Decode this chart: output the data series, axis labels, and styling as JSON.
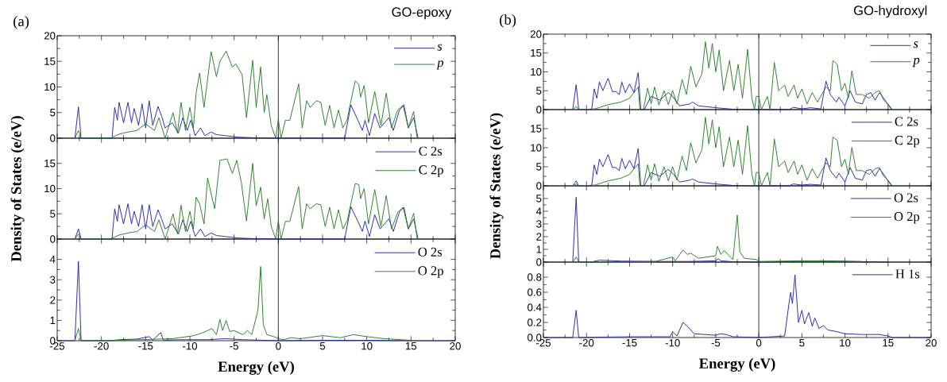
{
  "chart_data": [
    {
      "type": "line",
      "title": "GO-epoxy",
      "annotations": [
        "(a)"
      ],
      "xlim": [
        -25,
        20
      ],
      "xticks": [
        -25,
        -20,
        -15,
        -10,
        -5,
        0,
        5,
        10,
        15,
        20
      ],
      "ylim": [
        0,
        20
      ],
      "yticks": [
        0,
        5,
        10,
        15,
        20
      ],
      "tick_labels": "y",
      "legend": "top right",
      "ref_lines": [
        {
          "axis": "x",
          "value": 0
        }
      ],
      "series": [
        {
          "name": "*s*",
          "color": "#2020b0",
          "x": [
            -23,
            -22.6,
            -22.3,
            -19,
            -18.8,
            -18.5,
            -18.2,
            -18.0,
            -17.5,
            -17.0,
            -16.6,
            -16.3,
            -15.8,
            -15.4,
            -15.0,
            -14.6,
            -14.2,
            -13.6,
            -13.2,
            -12.8,
            -12.0,
            -11.3,
            -10.8,
            -10.3,
            -9.9,
            -9.4,
            -8.8,
            -8.3,
            -7.6,
            -7.0,
            -6.0,
            -4.5,
            -3.0,
            0,
            7.5,
            8.2,
            9.0,
            9.5,
            9.8,
            10.3,
            10.9,
            11.5,
            12.5,
            13.0,
            13.7,
            14.2,
            14.7,
            15.3,
            15.8
          ],
          "values": [
            0,
            6.1,
            0,
            0,
            0,
            6,
            3.5,
            7,
            3,
            7,
            3,
            5.8,
            2.5,
            6.7,
            2,
            7.3,
            2.5,
            6.2,
            4.3,
            2,
            3,
            1,
            4,
            1.5,
            3.5,
            0.5,
            2,
            0.5,
            1.2,
            0.7,
            0.5,
            0.2,
            0.1,
            0,
            0,
            6.5,
            3.5,
            1.5,
            3.5,
            0.5,
            4.8,
            2,
            4,
            1.5,
            5.5,
            6.5,
            2,
            4,
            0
          ]
        },
        {
          "name": "*p*",
          "color": "#1f7f1f",
          "x": [
            -23,
            -22.6,
            -22.3,
            -19,
            -18,
            -17,
            -16,
            -15,
            -14,
            -13.5,
            -12.8,
            -11.9,
            -11.4,
            -11.0,
            -10.5,
            -10.0,
            -9.6,
            -9.3,
            -8.9,
            -8.4,
            -7.6,
            -7.0,
            -6.6,
            -5.9,
            -5.2,
            -4.8,
            -4.1,
            -3.6,
            -2.9,
            -2.5,
            -2.0,
            -1.6,
            -1.3,
            -0.8,
            -0.3,
            0,
            0.3,
            0.8,
            1.3,
            2.3,
            2.7,
            3.2,
            3.6,
            4.3,
            4.8,
            5.3,
            5.8,
            6.3,
            6.8,
            7.3,
            7.8,
            8.1,
            8.7,
            9.1,
            9.3,
            9.7,
            10.2,
            10.9,
            11.6,
            12.2,
            12.8,
            13.5,
            14.1,
            14.7,
            15.3,
            15.7
          ],
          "values": [
            0,
            1.5,
            0,
            0,
            0.8,
            1.2,
            1.5,
            2.8,
            1.5,
            4,
            0,
            5,
            1,
            7,
            1.5,
            6,
            2,
            8.8,
            12.7,
            6,
            16.9,
            12,
            15,
            17,
            13.9,
            14.5,
            12.4,
            4,
            15.2,
            6,
            13.9,
            5,
            8.5,
            2.5,
            0,
            3.7,
            0,
            3.5,
            3.5,
            10.6,
            2,
            7.3,
            6,
            7.3,
            7,
            2.5,
            6.4,
            2,
            5.5,
            2,
            3.7,
            6.4,
            11.2,
            10.5,
            8,
            10.3,
            3,
            9.1,
            2.5,
            8.8,
            2,
            5.5,
            6.4,
            2,
            5.2,
            0
          ]
        }
      ]
    },
    {
      "type": "line",
      "ylabel": "Density of States (e/eV)",
      "xlim": [
        -25,
        20
      ],
      "xticks": [
        -25,
        -20,
        -15,
        -10,
        -5,
        0,
        5,
        10,
        15,
        20
      ],
      "ylim": [
        0,
        20
      ],
      "yticks": [
        0,
        5,
        10,
        15
      ],
      "tick_labels": "y",
      "legend": "top right",
      "ref_lines": [
        {
          "axis": "x",
          "value": 0
        }
      ],
      "series": [
        {
          "name": "C 2s",
          "color": "#2020b0",
          "x": [
            -23,
            -22.6,
            -22.3,
            -19,
            -18.8,
            -18.5,
            -18.2,
            -18.0,
            -17.5,
            -17.0,
            -16.6,
            -16.3,
            -15.8,
            -15.4,
            -15.0,
            -14.6,
            -14.2,
            -13.6,
            -13.2,
            -12.8,
            -12.0,
            -11.3,
            -10.8,
            -10.3,
            -9.9,
            -9.4,
            -8.8,
            -8.3,
            -7.6,
            -7.0,
            -6.0,
            -4.5,
            -3.0,
            0,
            7.5,
            8.2,
            9.0,
            9.5,
            9.8,
            10.3,
            10.9,
            11.5,
            12.5,
            13.0,
            13.7,
            14.2,
            14.7,
            15.3,
            15.8
          ],
          "values": [
            0,
            2,
            0,
            0,
            0,
            6,
            3.5,
            6.8,
            3,
            7,
            3,
            5.5,
            2.5,
            6.8,
            2,
            6.8,
            2.5,
            5.8,
            4,
            2,
            3,
            1,
            3.8,
            1.5,
            3.5,
            0.5,
            2,
            0.5,
            1.2,
            0.7,
            0.5,
            0.2,
            0.1,
            0,
            0,
            6.4,
            3.5,
            1.5,
            3.6,
            0.5,
            4.8,
            2,
            4,
            1.5,
            5.4,
            6.3,
            2,
            4,
            0
          ]
        },
        {
          "name": "C 2p",
          "color": "#1f7f1f",
          "x": [
            -23,
            -22.6,
            -22.3,
            -19,
            -18,
            -17,
            -16,
            -15,
            -14,
            -13.5,
            -12.8,
            -11.9,
            -11.4,
            -11.0,
            -10.5,
            -10.0,
            -9.6,
            -9.3,
            -8.9,
            -8.4,
            -8.0,
            -7.2,
            -6.6,
            -5.8,
            -5.2,
            -4.7,
            -4.2,
            -3.6,
            -2.9,
            -2.5,
            -2.0,
            -1.6,
            -1.2,
            -0.8,
            -0.3,
            0,
            0.3,
            0.8,
            1.3,
            2.3,
            2.7,
            3.2,
            3.6,
            4.3,
            4.8,
            5.3,
            5.8,
            6.3,
            6.8,
            7.3,
            7.8,
            8.1,
            8.7,
            9.1,
            9.3,
            9.7,
            10.2,
            10.9,
            11.6,
            12.2,
            12.8,
            13.5,
            14.1,
            14.7,
            15.3,
            15.7
          ],
          "values": [
            0,
            1,
            0,
            0,
            0.8,
            1.2,
            1.5,
            2.8,
            1.5,
            3.8,
            0,
            5,
            1,
            6.7,
            1.5,
            5.5,
            2,
            8.3,
            7,
            3,
            12.1,
            6,
            15.6,
            15.9,
            13,
            15.6,
            11.4,
            3.6,
            15,
            6.6,
            10.3,
            4,
            8,
            2.5,
            0,
            3.6,
            0,
            3.5,
            3.5,
            10.4,
            2,
            7,
            6,
            7,
            6.8,
            2.5,
            6.3,
            2,
            5.8,
            2,
            3.7,
            6.2,
            11,
            10.8,
            8,
            10,
            3,
            9.8,
            2.5,
            8.6,
            2,
            5.3,
            6.3,
            2,
            5.1,
            0
          ]
        }
      ]
    },
    {
      "type": "line",
      "xlabel": "Energy (eV)",
      "xlim": [
        -25,
        20
      ],
      "xticks": [
        -25,
        -20,
        -15,
        -10,
        -5,
        0,
        5,
        10,
        15,
        20
      ],
      "ylim": [
        0,
        5
      ],
      "yticks": [
        0,
        1,
        2,
        3,
        4
      ],
      "legend": "top right",
      "ref_lines": [
        {
          "axis": "x",
          "value": 0
        }
      ],
      "series": [
        {
          "name": "O 2s",
          "color": "#2020b0",
          "x": [
            -25,
            -23,
            -22.6,
            -22.3,
            -19,
            -18,
            -16,
            -14.6,
            -14.2,
            -13.3,
            -13.0,
            -11,
            -8,
            -6,
            -4,
            0,
            5,
            10,
            15,
            20
          ],
          "values": [
            0,
            0,
            3.9,
            0,
            0,
            0.05,
            0.08,
            0.2,
            0.03,
            0.4,
            0.03,
            0.05,
            0.05,
            0.1,
            0.05,
            0,
            0.02,
            0.02,
            0,
            0
          ]
        },
        {
          "name": "O 2p",
          "color": "#1f7f1f",
          "x": [
            -23,
            -22.6,
            -22.3,
            -19,
            -12,
            -9.5,
            -8.5,
            -8.0,
            -7.5,
            -7.0,
            -6.6,
            -6.3,
            -5.9,
            -5.5,
            -5.0,
            -4.5,
            -4.0,
            -3.5,
            -3.0,
            -2.3,
            -2.0,
            -1.7,
            -1.3,
            -0.5,
            0,
            0.6,
            1.4,
            2.5,
            5.0,
            6.0,
            7.0,
            8.5,
            10.0,
            12.0,
            15.0
          ],
          "values": [
            0,
            0.6,
            0,
            0,
            0.1,
            0.25,
            0.4,
            0.5,
            0.6,
            0.3,
            1.05,
            0.5,
            1.0,
            0.45,
            0.5,
            0.4,
            0.3,
            0.5,
            0.3,
            1.5,
            3.65,
            0.8,
            0.3,
            0.2,
            0.1,
            0.05,
            0.15,
            0.1,
            0.25,
            0.2,
            0.15,
            0.3,
            0.2,
            0.1,
            0.02
          ]
        }
      ]
    },
    {
      "type": "line",
      "title": "GO-hydroxyl",
      "annotations": [
        "(b)"
      ],
      "xlim": [
        -25,
        20
      ],
      "xticks": [
        -25,
        -20,
        -15,
        -10,
        -5,
        0,
        5,
        10,
        15,
        20
      ],
      "ylim": [
        0,
        20
      ],
      "yticks": [
        0,
        5,
        10,
        15,
        20
      ],
      "tick_labels": "y",
      "legend": "top right",
      "ref_lines": [
        {
          "axis": "x",
          "value": 0
        }
      ],
      "series": [
        {
          "name": "*s*",
          "color": "#2020b0",
          "x": [
            -21.6,
            -21.2,
            -20.9,
            -19.4,
            -19.1,
            -18.8,
            -18.5,
            -18.1,
            -17.5,
            -17.0,
            -16.6,
            -16.2,
            -15.9,
            -15.5,
            -15.0,
            -14.5,
            -14.0,
            -13.7,
            -13.3,
            -12.5,
            -11.5,
            -10.5,
            -10.0,
            -9.2,
            -8.0,
            -7.7,
            -7.0,
            -5.0,
            -3.0,
            0,
            3.5,
            4.0,
            5.0,
            6.0,
            7.2,
            7.8,
            8.3,
            9.0,
            9.3,
            10.0,
            10.6,
            11.2,
            12.0,
            12.5,
            13.0,
            13.5,
            14.0,
            14.5,
            15.3,
            15.5
          ],
          "values": [
            0,
            6.6,
            0,
            0,
            5.5,
            3,
            7.3,
            5,
            8.3,
            4.8,
            4.8,
            4,
            7.3,
            4.5,
            6.8,
            4.5,
            9.8,
            0,
            0,
            3.5,
            2.5,
            4.5,
            3.5,
            1,
            1.5,
            2,
            1,
            0.5,
            0.1,
            0,
            0,
            0.6,
            0.2,
            0.5,
            0.2,
            7.5,
            4,
            2,
            3.3,
            1,
            5,
            2,
            1.5,
            4,
            4.5,
            2.5,
            4.5,
            3,
            0.3,
            0
          ]
        },
        {
          "name": "*p*",
          "color": "#1f7f1f",
          "x": [
            -21.6,
            -21.2,
            -20.9,
            -19,
            -17.5,
            -16,
            -15,
            -14,
            -13.8,
            -13.4,
            -12.9,
            -12.5,
            -12.1,
            -11.6,
            -11.0,
            -10.5,
            -10.0,
            -9.5,
            -8.9,
            -8.4,
            -7.9,
            -7.3,
            -6.6,
            -6.2,
            -5.8,
            -5.4,
            -5.0,
            -4.6,
            -4.1,
            -3.4,
            -2.9,
            -2.4,
            -1.9,
            -1.3,
            -0.8,
            -0.5,
            -0.3,
            0,
            0.3,
            1.0,
            1.3,
            1.8,
            2.3,
            3.0,
            3.4,
            4.1,
            4.5,
            5.0,
            5.6,
            6.2,
            6.8,
            7.3,
            7.8,
            8.3,
            8.6,
            9.1,
            9.6,
            10.0,
            10.4,
            10.8,
            11.3,
            12.0,
            12.8,
            13.5,
            14.0,
            14.5,
            15.0,
            15.5
          ],
          "values": [
            0,
            0.8,
            0,
            0.2,
            1.3,
            2,
            3,
            6,
            0,
            0,
            5.7,
            1.5,
            6,
            1.2,
            5,
            1.3,
            5,
            1.5,
            8,
            4,
            11.5,
            6,
            9.5,
            18,
            11,
            17.5,
            10,
            15.8,
            5,
            13,
            5,
            12,
            3,
            16,
            3,
            0,
            3.5,
            3.5,
            0,
            3.5,
            0,
            12.5,
            5,
            6.5,
            3.5,
            6.5,
            3,
            5.5,
            1.5,
            4.5,
            2,
            4,
            6,
            5,
            13,
            12,
            5,
            7,
            3,
            10.3,
            4,
            4,
            3,
            4.5,
            5,
            2.5,
            1.5,
            0
          ]
        }
      ]
    },
    {
      "type": "line",
      "ylabel": "Density of States (e/eV)",
      "xlim": [
        -25,
        20
      ],
      "xticks": [
        -25,
        -20,
        -15,
        -10,
        -5,
        0,
        5,
        10,
        15,
        20
      ],
      "ylim": [
        0,
        20
      ],
      "yticks": [
        0,
        5,
        10,
        15
      ],
      "tick_labels": "y",
      "legend": "top right",
      "ref_lines": [
        {
          "axis": "x",
          "value": 0
        }
      ],
      "series": [
        {
          "name": "C 2s",
          "color": "#2020b0",
          "x": [
            -21.6,
            -21.2,
            -20.9,
            -19.4,
            -19.1,
            -18.8,
            -18.5,
            -18.1,
            -17.5,
            -17.0,
            -16.6,
            -16.2,
            -15.9,
            -15.5,
            -15.0,
            -14.5,
            -14.0,
            -13.7,
            -13.3,
            -12.5,
            -11.5,
            -10.5,
            -10.0,
            -9.2,
            -8.0,
            -7.7,
            -7.0,
            -5.0,
            -3.0,
            0,
            3.5,
            4.0,
            5.0,
            6.0,
            7.2,
            7.8,
            8.3,
            9.0,
            9.3,
            10.0,
            10.6,
            11.2,
            12.0,
            12.5,
            13.0,
            13.5,
            14.0,
            14.5,
            15.3,
            15.5
          ],
          "values": [
            0,
            1.3,
            0,
            0,
            5.5,
            3,
            7,
            5,
            8.2,
            4.8,
            4.8,
            4,
            7.2,
            4.5,
            6.7,
            4.5,
            9.8,
            0,
            0,
            3.5,
            2.5,
            4.3,
            3.3,
            1,
            1.5,
            1.8,
            1,
            0.5,
            0.1,
            0,
            0,
            0.5,
            0.2,
            0.4,
            0.2,
            7.3,
            4,
            2,
            3.3,
            1,
            4.8,
            2,
            1.5,
            4,
            4.3,
            2.5,
            4.5,
            3,
            0.3,
            0
          ]
        },
        {
          "name": "C 2p",
          "color": "#1f7f1f",
          "x": [
            -21.6,
            -21.2,
            -20.9,
            -19,
            -17.5,
            -16,
            -15,
            -14,
            -13.8,
            -13.4,
            -12.9,
            -12.5,
            -12.1,
            -11.6,
            -11.0,
            -10.5,
            -10.0,
            -9.5,
            -8.9,
            -8.4,
            -7.9,
            -7.3,
            -6.6,
            -6.2,
            -5.8,
            -5.4,
            -5.0,
            -4.6,
            -4.1,
            -3.4,
            -2.9,
            -2.4,
            -1.9,
            -1.3,
            -0.8,
            -0.5,
            -0.3,
            0,
            0.3,
            1.0,
            1.3,
            1.8,
            2.3,
            3.0,
            3.4,
            4.1,
            4.5,
            5.0,
            5.6,
            6.2,
            6.8,
            7.3,
            7.8,
            8.3,
            8.6,
            9.1,
            9.6,
            10.0,
            10.4,
            10.8,
            11.3,
            12.0,
            12.8,
            13.5,
            14.0,
            14.5,
            15.0,
            15.5
          ],
          "values": [
            0,
            0.5,
            0,
            0.2,
            1.3,
            2,
            3,
            5.8,
            0,
            0,
            5.5,
            1.5,
            5.8,
            1.2,
            5,
            1.3,
            5,
            1.5,
            7.8,
            4,
            11.3,
            6,
            9.5,
            18,
            11,
            17.3,
            10,
            15.5,
            5,
            12.8,
            5,
            12,
            3,
            15.8,
            3,
            0,
            3.5,
            3.5,
            0,
            3.5,
            0,
            12.3,
            5,
            6.5,
            3.5,
            6.5,
            3,
            5.5,
            1.5,
            4.5,
            2,
            4,
            6,
            5,
            12.8,
            12,
            5,
            7,
            3,
            10.1,
            4,
            4,
            3,
            4.5,
            4.8,
            2.5,
            1.5,
            0
          ]
        }
      ]
    },
    {
      "type": "line",
      "xlim": [
        -25,
        20
      ],
      "xticks": [
        -25,
        -20,
        -15,
        -10,
        -5,
        0,
        5,
        10,
        15,
        20
      ],
      "ylim": [
        0,
        6
      ],
      "yticks": [
        0,
        1,
        2,
        3,
        4,
        5
      ],
      "tick_labels": "y",
      "legend": "top right",
      "ref_lines": [
        {
          "axis": "x",
          "value": 0
        }
      ],
      "series": [
        {
          "name": "O 2s",
          "color": "#2020b0",
          "x": [
            -21.6,
            -21.2,
            -20.9,
            -19.5,
            -18.5,
            -16,
            -12,
            -8,
            -5,
            -4.7,
            -4.4,
            -3,
            0,
            5,
            10,
            15
          ],
          "values": [
            0,
            5.1,
            0,
            0,
            0.15,
            0.08,
            0.05,
            0.05,
            0.1,
            0.25,
            0.1,
            0.03,
            0,
            0.05,
            0.05,
            0
          ]
        },
        {
          "name": "O 2p",
          "color": "#1f7f1f",
          "x": [
            -21.6,
            -21.2,
            -20.9,
            -19.5,
            -12,
            -10.0,
            -9.7,
            -8.8,
            -8.3,
            -7.9,
            -7.0,
            -5.0,
            -4.8,
            -4.4,
            -4.0,
            -3.6,
            -3.0,
            -2.5,
            -2.2,
            -1.7,
            -0.3,
            0,
            5,
            8,
            12
          ],
          "values": [
            0,
            0.4,
            0,
            0,
            0.05,
            0.4,
            0.1,
            0.95,
            0.6,
            0.7,
            0.3,
            0.5,
            1.25,
            0.6,
            0.9,
            0.6,
            0.2,
            3.7,
            0.8,
            0.3,
            0.2,
            0.05,
            0.1,
            0.1,
            0.05
          ]
        }
      ]
    },
    {
      "type": "line",
      "xlabel": "Energy (eV)",
      "xlim": [
        -25,
        20
      ],
      "xticks": [
        -25,
        -20,
        -15,
        -10,
        -5,
        0,
        5,
        10,
        15,
        20
      ],
      "ylim": [
        0,
        1
      ],
      "yticks": [
        {
          "value": 0,
          "label": "0.0"
        },
        0.2,
        0.4,
        0.6,
        0.8
      ],
      "legend": "top right",
      "ref_lines": [
        {
          "axis": "x",
          "value": 0
        }
      ],
      "series": [
        {
          "name": "H 1s",
          "color": "#2020b0",
          "x": [
            -25,
            -21.6,
            -21.2,
            -20.9,
            -15,
            -10.3,
            -10.0,
            -9.5,
            -8.8,
            -8.3,
            -7.5,
            -5.0,
            -4.5,
            -3.8,
            -3.0,
            0,
            3.0,
            3.5,
            3.7,
            3.9,
            4.2,
            4.6,
            5.0,
            5.3,
            5.8,
            6.2,
            6.5,
            7.0,
            7.5,
            8.0,
            9.0,
            10.0,
            12.0,
            14.0,
            15.0,
            15.5,
            20
          ],
          "values": [
            0,
            0,
            0.36,
            0,
            0.01,
            0.01,
            0.08,
            0.02,
            0.2,
            0.15,
            0.05,
            0.03,
            0.05,
            0.04,
            0.01,
            0,
            0.02,
            0.45,
            0.6,
            0.45,
            0.83,
            0.2,
            0.36,
            0.18,
            0.33,
            0.15,
            0.26,
            0.12,
            0.16,
            0.1,
            0.08,
            0.05,
            0.04,
            0.04,
            0.02,
            0,
            0
          ]
        }
      ]
    }
  ]
}
